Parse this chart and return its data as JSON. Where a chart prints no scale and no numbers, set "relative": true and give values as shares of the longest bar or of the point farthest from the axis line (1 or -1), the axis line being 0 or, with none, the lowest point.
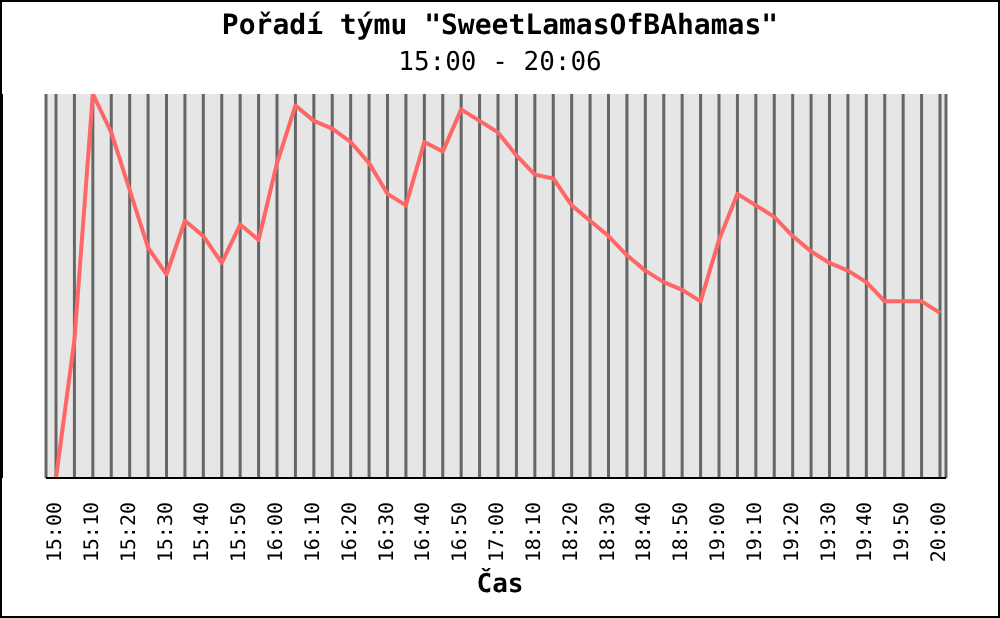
{
  "chart_data": {
    "type": "line",
    "title": "Pořadí týmu \"SweetLamasOfBAhamas\"",
    "subtitle": "15:00 - 20:06",
    "xlabel": "Čas",
    "relative": true,
    "grid": "x",
    "legend": false,
    "marker": "none",
    "line_style": "solid",
    "categories": [
      "15:00",
      null,
      "15:10",
      null,
      "15:20",
      null,
      "15:30",
      null,
      "15:40",
      null,
      "15:50",
      null,
      "16:00",
      null,
      "16:10",
      null,
      "16:20",
      null,
      "16:30",
      null,
      "16:40",
      null,
      "16:50",
      null,
      "17:00",
      null,
      "18:10",
      null,
      "18:20",
      null,
      "18:30",
      null,
      "18:40",
      null,
      "18:50",
      null,
      "19:00",
      null,
      "19:10",
      null,
      "19:20",
      null,
      "19:30",
      null,
      "19:40",
      null,
      "19:50",
      null,
      "20:00"
    ],
    "series": [
      {
        "color": "#ff6666",
        "values": [
          0,
          0.36,
          1,
          0.9,
          0.75,
          0.6,
          0.53,
          0.67,
          0.63,
          0.56,
          0.66,
          0.62,
          0.82,
          0.97,
          0.93,
          0.91,
          0.875,
          0.82,
          0.74,
          0.71,
          0.875,
          0.85,
          0.96,
          0.93,
          0.9,
          0.84,
          0.79,
          0.78,
          0.71,
          0.67,
          0.63,
          0.58,
          0.54,
          0.51,
          0.49,
          0.46,
          0.62,
          0.74,
          0.71,
          0.68,
          0.63,
          0.59,
          0.56,
          0.54,
          0.51,
          0.46,
          0.46,
          0.46,
          0.43
        ]
      }
    ]
  }
}
